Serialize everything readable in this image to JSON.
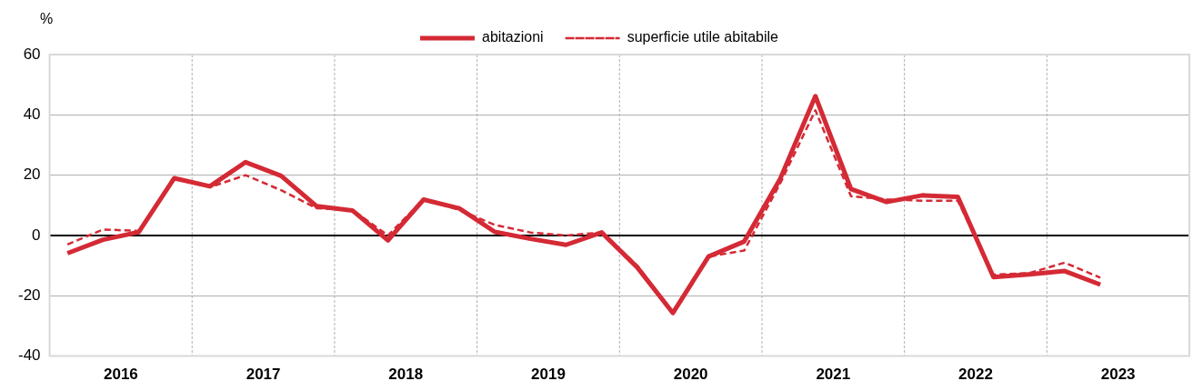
{
  "chart_data": {
    "type": "line",
    "ylabel": "%",
    "x": [
      2016.125,
      2016.375,
      2016.625,
      2016.875,
      2017.125,
      2017.375,
      2017.625,
      2017.875,
      2018.125,
      2018.375,
      2018.625,
      2018.875,
      2019.125,
      2019.375,
      2019.625,
      2019.875,
      2020.125,
      2020.375,
      2020.625,
      2020.875,
      2021.125,
      2021.375,
      2021.625,
      2021.875,
      2022.125,
      2022.375,
      2022.625,
      2022.875,
      2023.125,
      2023.375
    ],
    "series": [
      {
        "name": "abitazioni",
        "color": "#d42a35",
        "line_style": "solid",
        "values": [
          -5.9,
          -1.4,
          1.1,
          19,
          16.3,
          24.3,
          19.8,
          9.7,
          8.3,
          -1.6,
          11.9,
          9,
          1.2,
          -1.1,
          -3.1,
          1,
          -10.6,
          -25.7,
          -7,
          -2,
          18.5,
          46.2,
          15.4,
          11.1,
          13.3,
          12.8,
          -13.8,
          -12.9,
          -11.8,
          -16.3
        ]
      },
      {
        "name": "superficie utile abitabile",
        "color": "#d42a35",
        "line_style": "dashed",
        "values": [
          -3,
          2,
          1.5,
          19,
          16,
          20,
          15,
          9,
          8.5,
          0,
          12,
          8.5,
          3.5,
          1,
          0,
          1,
          -10,
          -25.5,
          -7,
          -5,
          17,
          41.5,
          13,
          12,
          11.5,
          11.5,
          -13,
          -12.5,
          -9,
          -14
        ]
      }
    ],
    "xlim": [
      2016,
      2024
    ],
    "xticks": [
      {
        "value": 2016.5,
        "label": "2016"
      },
      {
        "value": 2017,
        "label": null
      },
      {
        "value": 2017.5,
        "label": "2017"
      },
      {
        "value": 2018,
        "label": null
      },
      {
        "value": 2018.5,
        "label": "2018"
      },
      {
        "value": 2019,
        "label": null
      },
      {
        "value": 2019.5,
        "label": "2019"
      },
      {
        "value": 2020,
        "label": null
      },
      {
        "value": 2020.5,
        "label": "2020"
      },
      {
        "value": 2021,
        "label": null
      },
      {
        "value": 2021.5,
        "label": "2021"
      },
      {
        "value": 2022,
        "label": null
      },
      {
        "value": 2022.5,
        "label": "2022"
      },
      {
        "value": 2023,
        "label": null
      },
      {
        "value": 2023.5,
        "label": "2023"
      }
    ],
    "ylim": [
      -40,
      60
    ],
    "yticks": [
      -40,
      -20,
      0,
      20,
      40,
      60
    ],
    "grid": true,
    "legend": "top",
    "marker": "none",
    "ref_lines": [
      {
        "axis": "y",
        "value": 0,
        "color": "#000000"
      }
    ]
  }
}
